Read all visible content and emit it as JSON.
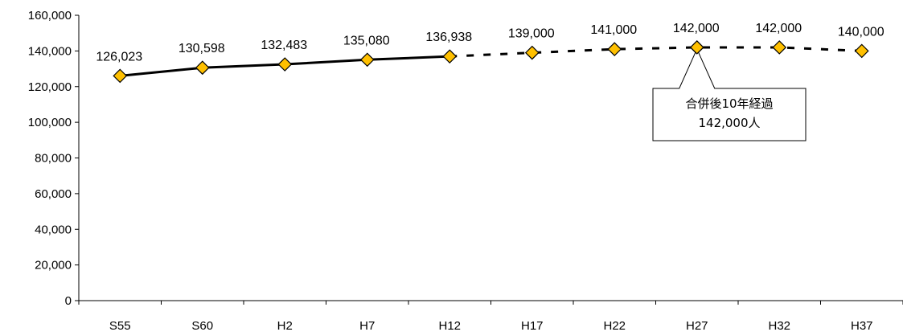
{
  "chart_data": {
    "type": "line",
    "categories": [
      "S55",
      "S60",
      "H2",
      "H7",
      "H12",
      "H17",
      "H22",
      "H27",
      "H32",
      "H37"
    ],
    "values": [
      126023,
      130598,
      132483,
      135080,
      136938,
      139000,
      141000,
      142000,
      142000,
      140000
    ],
    "data_labels": [
      "126,023",
      "130,598",
      "132,483",
      "135,080",
      "136,938",
      "139,000",
      "141,000",
      "142,000",
      "142,000",
      "140,000"
    ],
    "actual_count": 5,
    "ylim": [
      0,
      160000
    ],
    "yticks": [
      0,
      20000,
      40000,
      60000,
      80000,
      100000,
      120000,
      140000,
      160000
    ],
    "ytick_labels": [
      "0",
      "20,000",
      "40,000",
      "60,000",
      "80,000",
      "100,000",
      "120,000",
      "140,000",
      "160,000"
    ],
    "line_style_actual": "solid",
    "line_style_projected": "dashed",
    "marker": "diamond",
    "colors": {
      "line": "#000000",
      "marker_fill": "#FFC000",
      "marker_stroke": "#000000"
    },
    "grid": false,
    "legend": "none",
    "annotation": {
      "category": "H27",
      "lines": [
        "合併後10年経過",
        "142,000人"
      ]
    }
  }
}
